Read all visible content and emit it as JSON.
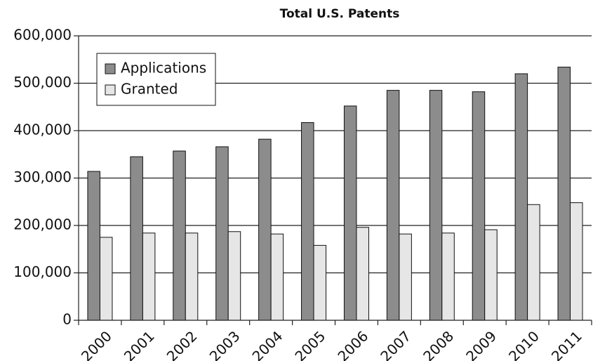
{
  "chart_data": {
    "type": "bar",
    "title": "Total U.S. Patents",
    "categories": [
      "2000",
      "2001",
      "2002",
      "2003",
      "2004",
      "2005",
      "2006",
      "2007",
      "2008",
      "2009",
      "2010",
      "2011"
    ],
    "series": [
      {
        "name": "Applications",
        "color": "#8c8c8c",
        "values": [
          314000,
          345000,
          357000,
          366000,
          382000,
          417000,
          452000,
          485000,
          485000,
          482000,
          520000,
          534000
        ]
      },
      {
        "name": "Granted",
        "color": "#e6e6e6",
        "values": [
          175000,
          184000,
          184000,
          187000,
          182000,
          158000,
          196000,
          182000,
          184000,
          191000,
          244000,
          248000
        ]
      }
    ],
    "ylim": [
      0,
      600000
    ],
    "yticks": [
      0,
      {
        "value": 100000,
        "label": "100,000"
      },
      {
        "value": 200000,
        "label": "200,000"
      },
      {
        "value": 300000,
        "label": "300,000"
      },
      {
        "value": 400000,
        "label": "400,000"
      },
      {
        "value": 500000,
        "label": "500,000"
      },
      {
        "value": 600000,
        "label": "600,000"
      }
    ],
    "grid": true,
    "legend": "upper left"
  }
}
